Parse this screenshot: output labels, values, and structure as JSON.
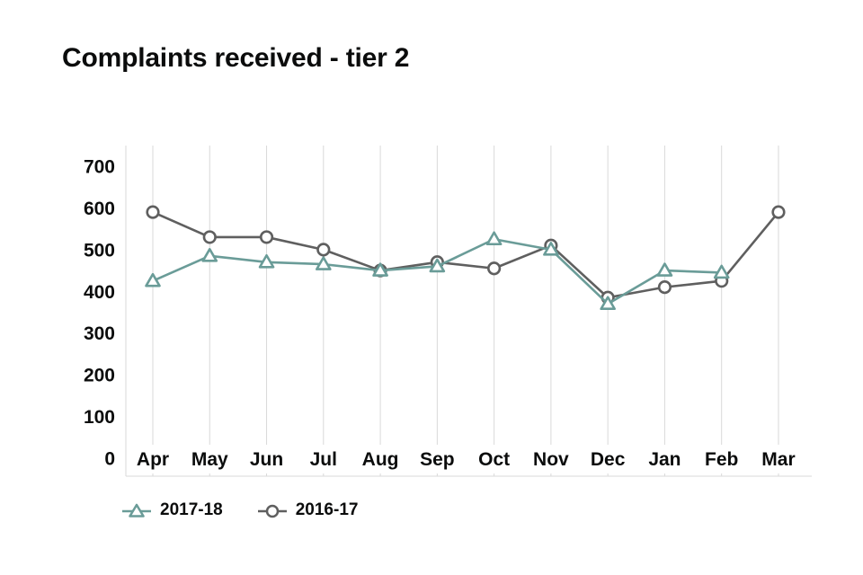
{
  "title": "Complaints received - tier 2",
  "chart_data": {
    "type": "line",
    "title": "Complaints received - tier 2",
    "categories": [
      "Apr",
      "May",
      "Jun",
      "Jul",
      "Aug",
      "Sep",
      "Oct",
      "Nov",
      "Dec",
      "Jan",
      "Feb",
      "Mar"
    ],
    "yticks": [
      0,
      100,
      200,
      300,
      400,
      500,
      600,
      700
    ],
    "ylim": [
      0,
      700
    ],
    "xlabel": "",
    "ylabel": "",
    "grid": "vertical",
    "legend_position": "bottom",
    "series": [
      {
        "name": "2017-18",
        "marker": "triangle",
        "color": "#6a9c98",
        "values": [
          425,
          485,
          470,
          465,
          450,
          460,
          525,
          500,
          370,
          450,
          445,
          null
        ]
      },
      {
        "name": "2016-17",
        "marker": "circle",
        "color": "#5f5f5f",
        "values": [
          590,
          530,
          530,
          500,
          450,
          470,
          455,
          510,
          385,
          410,
          425,
          590
        ]
      }
    ]
  }
}
